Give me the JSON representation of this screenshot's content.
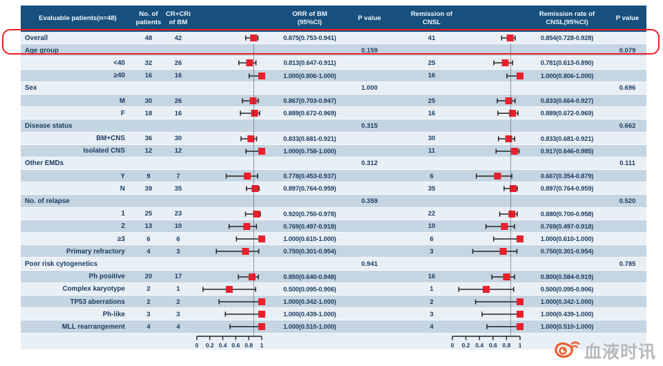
{
  "colors": {
    "header_bg": "#174f7d",
    "row_light": "#e8eff5",
    "row_dark": "#c5d5e2",
    "text_navy": "#1d3d60",
    "marker_red": "#e8202d",
    "bar_black": "#222222",
    "highlight_red": "#ee1c25",
    "watermark_gray": "#b6b9bc",
    "watermark_logo_orange": "#ee5a2b"
  },
  "watermark": {
    "icon": "weibo-logo-icon",
    "text": "血液时讯"
  },
  "chart_data": {
    "type": "forest-plot-table",
    "title": "",
    "axis": {
      "range": [
        0,
        1
      ],
      "tick_labels": [
        "0",
        "0.2",
        "0.4",
        "0.6",
        "0.8",
        "1"
      ],
      "ticks": [
        0,
        0.2,
        0.4,
        0.6,
        0.8,
        1
      ]
    },
    "reference_lines": {
      "orr_overall": 0.875,
      "cnsl_overall": 0.854
    },
    "columns": [
      {
        "key": "label",
        "lines": [
          "Evaluable patients(n=48)"
        ]
      },
      {
        "key": "n",
        "lines": [
          "No. of",
          "patients"
        ]
      },
      {
        "key": "cr",
        "lines": [
          "CR+CRi",
          "of BM"
        ]
      },
      {
        "key": "plot1",
        "lines": []
      },
      {
        "key": "orr",
        "lines": [
          "ORR of BM",
          "(95%CI)"
        ]
      },
      {
        "key": "p1",
        "lines": [
          "P value"
        ]
      },
      {
        "key": "rem",
        "lines": [
          "Remission of",
          "CNSL"
        ]
      },
      {
        "key": "plot2",
        "lines": []
      },
      {
        "key": "rate",
        "lines": [
          "Remission rate of",
          "CNSL(95%CI)"
        ]
      },
      {
        "key": "p2",
        "lines": [
          "P value"
        ]
      }
    ],
    "rows": [
      {
        "label": "Overall",
        "type": "overall",
        "n": "48",
        "cr": "42",
        "orr": {
          "est": 0.875,
          "lo": 0.753,
          "hi": 0.941,
          "text": "0.875(0.753-0.941)"
        },
        "p1": "",
        "cnsl_n": "41",
        "cnsl": {
          "est": 0.854,
          "lo": 0.728,
          "hi": 0.928,
          "text": "0.854(0.728-0.928)"
        },
        "p2": ""
      },
      {
        "label": "Age group",
        "type": "group",
        "p1": "0.159",
        "p2": "0.079"
      },
      {
        "label": "<40",
        "type": "sub",
        "n": "32",
        "cr": "26",
        "orr": {
          "est": 0.813,
          "lo": 0.647,
          "hi": 0.911,
          "text": "0.813(0.647-0.911)"
        },
        "cnsl_n": "25",
        "cnsl": {
          "est": 0.781,
          "lo": 0.613,
          "hi": 0.89,
          "text": "0.781(0.613-0.890)"
        }
      },
      {
        "label": "≥40",
        "type": "sub",
        "n": "16",
        "cr": "16",
        "orr": {
          "est": 1.0,
          "lo": 0.806,
          "hi": 1.0,
          "text": "1.000(0.806-1.000)"
        },
        "cnsl_n": "16",
        "cnsl": {
          "est": 1.0,
          "lo": 0.806,
          "hi": 1.0,
          "text": "1.000(0.806-1.000)"
        }
      },
      {
        "label": "Sex",
        "type": "group",
        "p1": "1.000",
        "p2": "0.696"
      },
      {
        "label": "M",
        "type": "sub",
        "n": "30",
        "cr": "26",
        "orr": {
          "est": 0.867,
          "lo": 0.703,
          "hi": 0.947,
          "text": "0.867(0.703-0.947)"
        },
        "cnsl_n": "25",
        "cnsl": {
          "est": 0.833,
          "lo": 0.664,
          "hi": 0.927,
          "text": "0.833(0.664-0.927)"
        }
      },
      {
        "label": "F",
        "type": "sub",
        "n": "18",
        "cr": "16",
        "orr": {
          "est": 0.889,
          "lo": 0.672,
          "hi": 0.969,
          "text": "0.889(0.672-0.969)"
        },
        "cnsl_n": "16",
        "cnsl": {
          "est": 0.889,
          "lo": 0.672,
          "hi": 0.969,
          "text": "0.889(0.672-0.969)"
        }
      },
      {
        "label": "Disease status",
        "type": "group",
        "p1": "0.315",
        "p2": "0.662"
      },
      {
        "label": "BM+CNS",
        "type": "sub",
        "n": "36",
        "cr": "30",
        "orr": {
          "est": 0.833,
          "lo": 0.681,
          "hi": 0.921,
          "text": "0.833(0.681-0.921)"
        },
        "cnsl_n": "30",
        "cnsl": {
          "est": 0.833,
          "lo": 0.681,
          "hi": 0.921,
          "text": "0.833(0.681-0.921)"
        }
      },
      {
        "label": "Isolated CNS",
        "type": "sub",
        "n": "12",
        "cr": "12",
        "orr": {
          "est": 1.0,
          "lo": 0.758,
          "hi": 1.0,
          "text": "1.000(0.758-1.000)"
        },
        "cnsl_n": "11",
        "cnsl": {
          "est": 0.917,
          "lo": 0.646,
          "hi": 0.985,
          "text": "0.917(0.646-0.985)"
        }
      },
      {
        "label": "Other EMDs",
        "type": "group",
        "p1": "0.312",
        "p2": "0.111"
      },
      {
        "label": "Y",
        "type": "sub",
        "n": "9",
        "cr": "7",
        "orr": {
          "est": 0.778,
          "lo": 0.453,
          "hi": 0.937,
          "text": "0.778(0.453-0.937)"
        },
        "cnsl_n": "6",
        "cnsl": {
          "est": 0.667,
          "lo": 0.354,
          "hi": 0.879,
          "text": "0.667(0.354-0.879)"
        }
      },
      {
        "label": "N",
        "type": "sub",
        "n": "39",
        "cr": "35",
        "orr": {
          "est": 0.897,
          "lo": 0.764,
          "hi": 0.959,
          "text": "0.897(0.764-0.959)"
        },
        "cnsl_n": "35",
        "cnsl": {
          "est": 0.897,
          "lo": 0.764,
          "hi": 0.959,
          "text": "0.897(0.764-0.959)"
        }
      },
      {
        "label": "No. of relapse",
        "type": "group",
        "p1": "0.359",
        "p2": "0.520"
      },
      {
        "label": "1",
        "type": "sub",
        "n": "25",
        "cr": "23",
        "orr": {
          "est": 0.92,
          "lo": 0.75,
          "hi": 0.978,
          "text": "0.920(0.750-0.978)"
        },
        "cnsl_n": "22",
        "cnsl": {
          "est": 0.88,
          "lo": 0.7,
          "hi": 0.958,
          "text": "0.880(0.700-0.958)"
        }
      },
      {
        "label": "2",
        "type": "sub",
        "n": "13",
        "cr": "10",
        "orr": {
          "est": 0.769,
          "lo": 0.497,
          "hi": 0.918,
          "text": "0.769(0.497-0.918)"
        },
        "cnsl_n": "10",
        "cnsl": {
          "est": 0.769,
          "lo": 0.497,
          "hi": 0.918,
          "text": "0.769(0.497-0.918)"
        }
      },
      {
        "label": "≥3",
        "type": "sub",
        "n": "6",
        "cr": "6",
        "orr": {
          "est": 1.0,
          "lo": 0.61,
          "hi": 1.0,
          "text": "1.000(0.610-1.000)"
        },
        "cnsl_n": "6",
        "cnsl": {
          "est": 1.0,
          "lo": 0.61,
          "hi": 1.0,
          "text": "1.000(0.610-1.000)"
        }
      },
      {
        "label": "Primary refractory",
        "type": "sub",
        "n": "4",
        "cr": "3",
        "orr": {
          "est": 0.75,
          "lo": 0.301,
          "hi": 0.954,
          "text": "0.750(0.301-0.954)"
        },
        "cnsl_n": "3",
        "cnsl": {
          "est": 0.75,
          "lo": 0.301,
          "hi": 0.954,
          "text": "0.750(0.301-0.954)"
        }
      },
      {
        "label": "Poor risk cytogenetics",
        "type": "group",
        "p1": "0.941",
        "p2": "0.785"
      },
      {
        "label": "Ph positive",
        "type": "sub",
        "n": "20",
        "cr": "17",
        "orr": {
          "est": 0.85,
          "lo": 0.64,
          "hi": 0.948,
          "text": "0.850(0.640-0.948)"
        },
        "cnsl_n": "16",
        "cnsl": {
          "est": 0.8,
          "lo": 0.584,
          "hi": 0.919,
          "text": "0.800(0.584-0.919)"
        }
      },
      {
        "label": "Complex karyotype",
        "type": "sub",
        "n": "2",
        "cr": "1",
        "orr": {
          "est": 0.5,
          "lo": 0.095,
          "hi": 0.906,
          "text": "0.500(0.095-0.906)"
        },
        "cnsl_n": "1",
        "cnsl": {
          "est": 0.5,
          "lo": 0.095,
          "hi": 0.906,
          "text": "0.500(0.095-0.906)"
        }
      },
      {
        "label": "TP53 aberrations",
        "type": "sub",
        "n": "2",
        "cr": "2",
        "orr": {
          "est": 1.0,
          "lo": 0.342,
          "hi": 1.0,
          "text": "1.000(0.342-1.000)"
        },
        "cnsl_n": "2",
        "cnsl": {
          "est": 1.0,
          "lo": 0.342,
          "hi": 1.0,
          "text": "1.000(0.342-1.000)"
        }
      },
      {
        "label": "Ph-like",
        "type": "sub",
        "n": "3",
        "cr": "3",
        "orr": {
          "est": 1.0,
          "lo": 0.439,
          "hi": 1.0,
          "text": "1.000(0.439-1.000)"
        },
        "cnsl_n": "3",
        "cnsl": {
          "est": 1.0,
          "lo": 0.439,
          "hi": 1.0,
          "text": "1.000(0.439-1.000)"
        }
      },
      {
        "label": "MLL rearrangement",
        "type": "sub",
        "n": "4",
        "cr": "4",
        "orr": {
          "est": 1.0,
          "lo": 0.51,
          "hi": 1.0,
          "text": "1.000(0.510-1.000)"
        },
        "cnsl_n": "4",
        "cnsl": {
          "est": 1.0,
          "lo": 0.51,
          "hi": 1.0,
          "text": "1.000(0.510-1.000)"
        }
      }
    ]
  }
}
